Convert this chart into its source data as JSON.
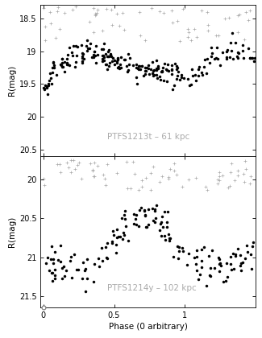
{
  "panel1_label": "PTFS1213t – 61 kpc",
  "panel2_label": "PTFS1214y – 102 kpc",
  "xlabel": "Phase (0 arbitrary)",
  "ylabel": "R(mag)",
  "panel1_ylim": [
    20.6,
    18.3
  ],
  "panel2_ylim": [
    21.65,
    19.7
  ],
  "panel1_yticks": [
    18.5,
    19.0,
    19.5,
    20.0,
    20.5
  ],
  "panel2_yticks": [
    20.0,
    20.5,
    21.0,
    21.5
  ],
  "xlim": [
    -0.02,
    1.5
  ],
  "xticks": [
    0.0,
    0.5,
    1.0
  ],
  "xticklabels": [
    "0",
    "0.5",
    "1"
  ],
  "background_color": "#ffffff",
  "label_color": "#aaaaaa",
  "label_fontsize": 7.5
}
